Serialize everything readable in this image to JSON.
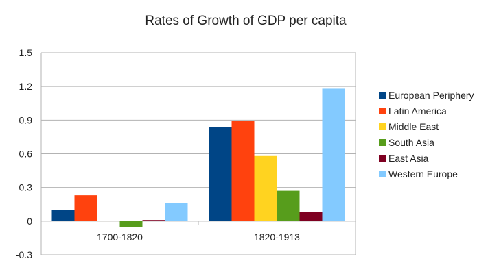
{
  "chart_data": {
    "type": "bar",
    "title": "Rates of Growth of GDP per capita",
    "xlabel": "",
    "ylabel": "",
    "categories": [
      "1700-1820",
      "1820-1913"
    ],
    "ylim": [
      -0.3,
      1.5
    ],
    "yticks": [
      -0.3,
      0,
      0.3,
      0.6,
      0.9,
      1.2,
      1.5
    ],
    "ytick_labels": [
      "-0.3",
      "0",
      "0.3",
      "0.6",
      "0.9",
      "1.2",
      "1.5"
    ],
    "grid": true,
    "legend_position": "right",
    "series": [
      {
        "name": "European Periphery",
        "color": "#004586",
        "values": [
          0.1,
          0.84
        ]
      },
      {
        "name": "Latin America",
        "color": "#ff420e",
        "values": [
          0.23,
          0.89
        ]
      },
      {
        "name": "Middle East",
        "color": "#ffd320",
        "values": [
          0.005,
          0.58
        ]
      },
      {
        "name": "South Asia",
        "color": "#579d1c",
        "values": [
          -0.05,
          0.27
        ]
      },
      {
        "name": "East Asia",
        "color": "#7e0021",
        "values": [
          0.01,
          0.08
        ]
      },
      {
        "name": "Western Europe",
        "color": "#83caff",
        "values": [
          0.16,
          1.18
        ]
      }
    ]
  }
}
